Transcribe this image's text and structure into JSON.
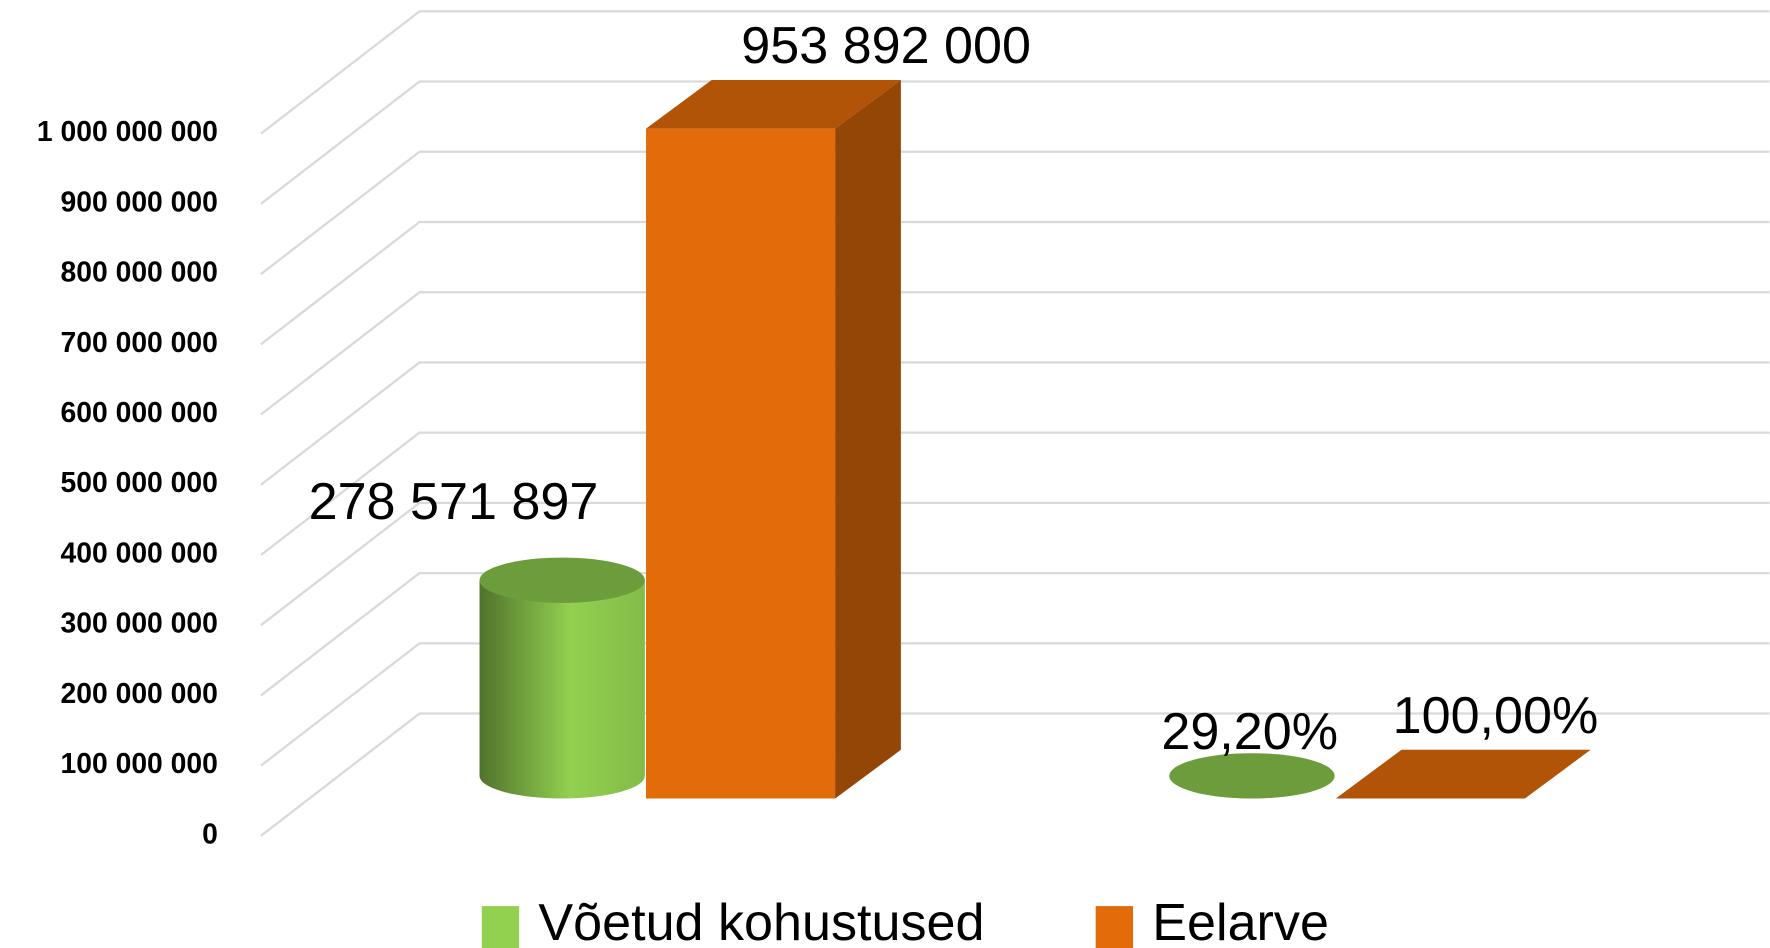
{
  "chart_data": {
    "type": "bar3d",
    "categories": [
      null,
      null
    ],
    "series": [
      {
        "name": "Võetud kohustused",
        "color": "#92d050",
        "shape": "cylinder",
        "values": [
          278571897,
          29.2
        ],
        "value_labels": [
          "278 571 897",
          "29,20%"
        ]
      },
      {
        "name": "Eelarve",
        "color": "#e36c0a",
        "shape": "box",
        "values": [
          953892000,
          100
        ],
        "value_labels": [
          "953 892 000",
          "100,00%"
        ]
      }
    ],
    "ylim": [
      0,
      1100000000
    ],
    "yticks": [
      0,
      {
        "value": 100000000,
        "label": "100 000 000"
      },
      {
        "value": 200000000,
        "label": "200 000 000"
      },
      {
        "value": 300000000,
        "label": "300 000 000"
      },
      {
        "value": 400000000,
        "label": "400 000 000"
      },
      {
        "value": 500000000,
        "label": "500 000 000"
      },
      {
        "value": 600000000,
        "label": "600 000 000"
      },
      {
        "value": 700000000,
        "label": "700 000 000"
      },
      {
        "value": 800000000,
        "label": "800 000 000"
      },
      {
        "value": 900000000,
        "label": "900 000 000"
      },
      {
        "value": 1000000000,
        "label": "1 000 000 000"
      }
    ],
    "grid": true,
    "legend": "bottom"
  }
}
